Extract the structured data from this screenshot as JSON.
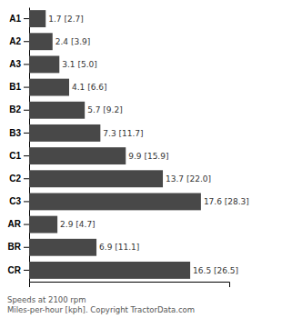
{
  "chart_data": {
    "type": "bar",
    "orientation": "horizontal",
    "categories": [
      "A1",
      "A2",
      "A3",
      "B1",
      "B2",
      "B3",
      "C1",
      "C2",
      "C3",
      "AR",
      "BR",
      "CR"
    ],
    "values": [
      1.7,
      2.4,
      3.1,
      4.1,
      5.7,
      7.3,
      9.9,
      13.7,
      17.6,
      2.9,
      6.9,
      16.5
    ],
    "value_labels": [
      "1.7 [2.7]",
      "2.4 [3.9]",
      "3.1 [5.0]",
      "4.1 [6.6]",
      "5.7 [9.2]",
      "7.3 [11.7]",
      "9.9 [15.9]",
      "13.7 [22.0]",
      "17.6 [28.3]",
      "2.9 [4.7]",
      "6.9 [11.1]",
      "16.5 [26.5]"
    ],
    "color": "#484848",
    "xlim": [
      0,
      20.5
    ],
    "data_labels": true,
    "tick_labels": "y",
    "annotations": [
      "Speeds at 2100 rpm",
      "Miles-per-hour [kph]. Copyright TractorData.com"
    ]
  }
}
